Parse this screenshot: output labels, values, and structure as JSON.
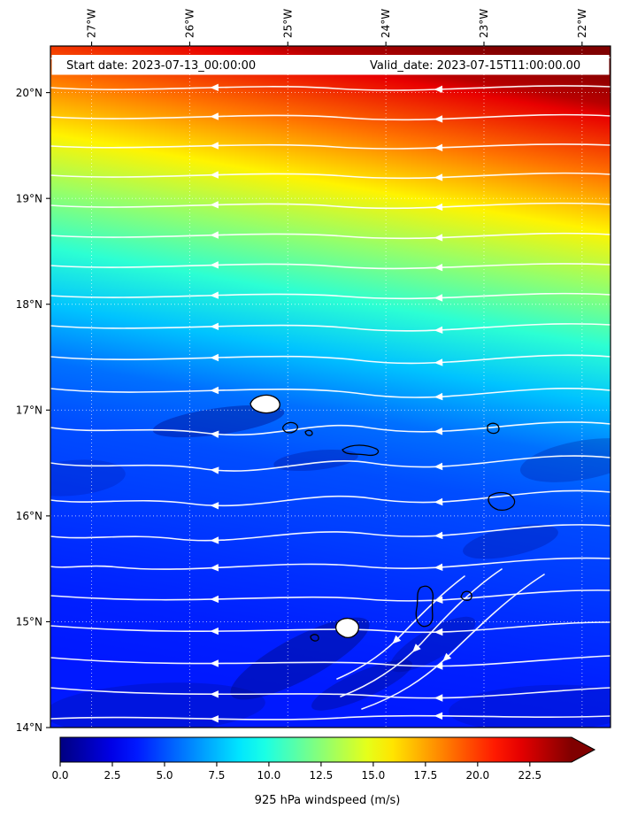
{
  "figure": {
    "annotations": {
      "start_date": "Start date: 2023-07-13_00:00:00",
      "valid_date": "Valid_date: 2023-07-15T11:00:00.00"
    },
    "background_color": "#ffffff"
  },
  "chart_data": {
    "type": "heatmap",
    "subtype": "filled-contour windspeed map with overlaid white streamlines and black coastline contours",
    "region": "Cape Verde archipelago, eastern tropical North Atlantic",
    "title": "",
    "xlabel": "",
    "ylabel": "",
    "x_axis": {
      "position": "top",
      "tick_labels": [
        "27°W",
        "26°W",
        "25°W",
        "24°W",
        "23°W",
        "22°W"
      ],
      "tick_values_deg_east": [
        -27,
        -26,
        -25,
        -24,
        -23,
        -22
      ],
      "range_deg_east": [
        -27.42,
        -21.71
      ],
      "tick_label_rotation_deg": 90
    },
    "y_axis": {
      "position": "left",
      "tick_labels": [
        "20°N",
        "19°N",
        "18°N",
        "17°N",
        "16°N",
        "15°N",
        "14°N"
      ],
      "tick_values_deg_north": [
        20,
        19,
        18,
        17,
        16,
        15,
        14
      ],
      "range_deg_north": [
        14.0,
        20.44
      ]
    },
    "grid": {
      "visible": true,
      "style": "dotted"
    },
    "colormap": "jet",
    "colorbar": {
      "label": "925 hPa windspeed (m/s)",
      "orientation": "horizontal",
      "tick_labels": [
        "0.0",
        "2.5",
        "5.0",
        "7.5",
        "10.0",
        "12.5",
        "15.0",
        "17.5",
        "20.0",
        "22.5"
      ],
      "tick_values": [
        0,
        2.5,
        5,
        7.5,
        10,
        12.5,
        15,
        17.5,
        20,
        22.5
      ],
      "vmin": 0,
      "vmax": 24.5,
      "extend": "max",
      "extend_color": "#800000"
    },
    "windspeed_field_mps": {
      "lons_deg_east": [
        -27,
        -26,
        -25,
        -24,
        -23,
        -22
      ],
      "lats_deg_north": [
        20.4,
        20,
        19.5,
        19,
        18.5,
        18,
        17.5,
        17,
        16.5,
        16,
        15.5,
        15,
        14.5,
        14
      ],
      "values": [
        [
          19,
          21,
          24,
          25,
          25,
          25
        ],
        [
          17,
          19,
          22,
          24,
          25,
          25
        ],
        [
          14.5,
          15.5,
          17.5,
          19.5,
          21.5,
          23.5
        ],
        [
          13,
          13.5,
          14.5,
          16,
          17.5,
          19
        ],
        [
          11,
          11.5,
          12,
          13,
          14,
          15
        ],
        [
          9,
          9.5,
          10,
          10.5,
          11,
          11.5
        ],
        [
          6.5,
          7,
          7.5,
          8,
          8.5,
          9
        ],
        [
          5,
          5.5,
          4.5,
          6,
          6.5,
          7
        ],
        [
          4.5,
          4.5,
          4,
          5,
          5.5,
          6
        ],
        [
          4,
          4,
          4.5,
          4.5,
          5,
          5.5
        ],
        [
          4,
          3.5,
          4,
          4,
          4.5,
          5
        ],
        [
          3.5,
          3.5,
          4,
          2.5,
          4.5,
          5
        ],
        [
          3.5,
          3.5,
          3.5,
          3,
          4,
          4.5
        ],
        [
          3,
          3.5,
          4,
          3.5,
          4,
          4
        ]
      ]
    },
    "streamlines": {
      "color": "#ffffff",
      "description": "Easterly trade-wind flow: streamlines run east-to-west, nearly zonal north of 18°N where winds exceed 20 m/s, becoming wavier south of 17°N with southwest-curving island-wake patterns downwind of the Cape Verde islands."
    },
    "coastlines": {
      "color": "#000000",
      "note": "Cape Verde island coastline contours; two islands drawn with solid white fill"
    }
  }
}
